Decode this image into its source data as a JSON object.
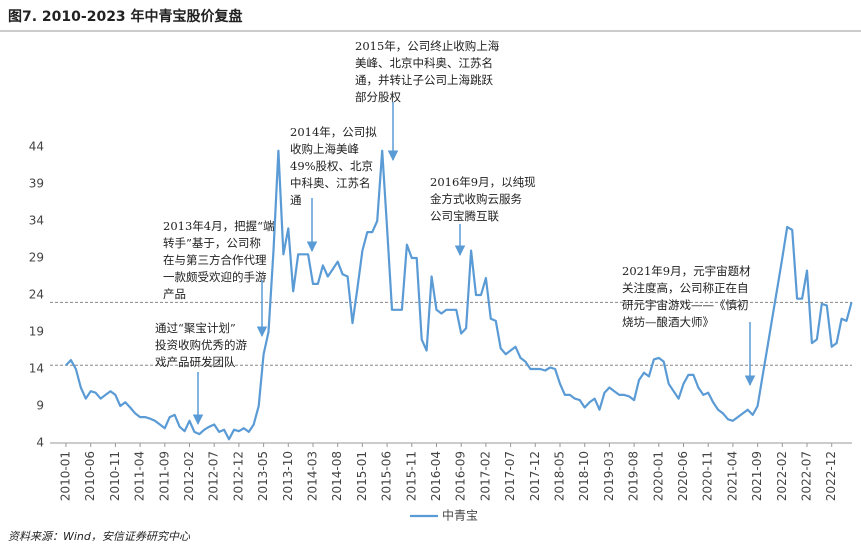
{
  "chart_data": {
    "type": "line",
    "title": "图7. 2010-2023 年中青宝股价复盘",
    "source": "资料来源：Wind，安信证券研究中心",
    "categories": [
      "2010-01",
      null,
      null,
      null,
      null,
      "2010-06",
      null,
      null,
      null,
      null,
      "2010-11",
      null,
      null,
      null,
      null,
      "2011-04",
      null,
      null,
      null,
      null,
      "2011-09",
      null,
      null,
      null,
      null,
      "2012-02",
      null,
      null,
      null,
      null,
      "2012-07",
      null,
      null,
      null,
      null,
      "2012-12",
      null,
      null,
      null,
      null,
      "2013-05",
      null,
      null,
      null,
      null,
      "2013-10",
      null,
      null,
      null,
      null,
      "2014-03",
      null,
      null,
      null,
      null,
      "2014-08",
      null,
      null,
      null,
      null,
      "2015-01",
      null,
      null,
      null,
      null,
      "2015-06",
      null,
      null,
      null,
      null,
      "2015-11",
      null,
      null,
      null,
      null,
      "2016-04",
      null,
      null,
      null,
      null,
      "2016-09",
      null,
      null,
      null,
      null,
      "2017-02",
      null,
      null,
      null,
      null,
      "2017-07",
      null,
      null,
      null,
      null,
      "2017-12",
      null,
      null,
      null,
      null,
      "2018-05",
      null,
      null,
      null,
      null,
      "2018-10",
      null,
      null,
      null,
      null,
      "2019-03",
      null,
      null,
      null,
      null,
      "2019-08",
      null,
      null,
      null,
      null,
      "2020-01",
      null,
      null,
      null,
      null,
      "2020-06",
      null,
      null,
      null,
      null,
      "2020-11",
      null,
      null,
      null,
      null,
      "2021-04",
      null,
      null,
      null,
      null,
      "2021-09",
      null,
      null,
      null,
      null,
      "2022-02",
      null,
      null,
      null,
      null,
      "2022-07",
      null,
      null,
      null,
      null,
      "2022-12",
      null,
      null,
      null,
      null
    ],
    "series": [
      {
        "name": "中青宝",
        "color": "#5b9bd5",
        "values": [
          14.5,
          15.2,
          14,
          11.5,
          10,
          11,
          10.8,
          10,
          10.5,
          11,
          10.5,
          9,
          9.5,
          8.8,
          8,
          7.5,
          7.5,
          7.3,
          7,
          6.5,
          6,
          7.5,
          7.8,
          6.2,
          5.6,
          7,
          5.5,
          5.2,
          5.8,
          6.2,
          6.5,
          5.5,
          5.8,
          4.5,
          5.8,
          5.6,
          6,
          5.5,
          6.5,
          9,
          16,
          19,
          30,
          43.5,
          29.5,
          33,
          24.5,
          29.5,
          29.5,
          29.5,
          25.5,
          25.5,
          28,
          26.5,
          27.5,
          28.5,
          26.8,
          26.5,
          20.2,
          25,
          30,
          32.5,
          32.5,
          34,
          43.5,
          33,
          22,
          22,
          22,
          30.8,
          29,
          29,
          18,
          16.5,
          26.5,
          22,
          21.5,
          22,
          22,
          22,
          18.8,
          19.5,
          30,
          24,
          24,
          26.3,
          20.8,
          20.5,
          16.8,
          16,
          16.5,
          17,
          15.5,
          15,
          14,
          14,
          14,
          13.8,
          14.2,
          14,
          12,
          10.5,
          10.5,
          10,
          9.8,
          8.8,
          9.5,
          10,
          8.5,
          10.8,
          11.5,
          11,
          10.5,
          10.5,
          10.3,
          9.8,
          12.5,
          13.5,
          13,
          15.3,
          15.5,
          15,
          12,
          11,
          10,
          12,
          13.2,
          13.2,
          11.5,
          10.5,
          10.8,
          9.5,
          8.5,
          8,
          7.2,
          7,
          7.5,
          8,
          8.5,
          7.8,
          9,
          13,
          17,
          21,
          25,
          29,
          33.2,
          32.8,
          23.5,
          23.5,
          27.3,
          17.5,
          18,
          22.8,
          22.6,
          17,
          17.5,
          20.8,
          20.5,
          23
        ]
      }
    ],
    "ylim": [
      4,
      44
    ],
    "yticks": [
      4,
      9,
      14,
      19,
      24,
      29,
      34,
      39,
      44
    ],
    "reference_lines": [
      23,
      14.5
    ],
    "legend": "bottom",
    "annotations": [
      {
        "lines": [
          "通过“聚宝计划”",
          "投资收购优秀的游",
          "戏产品研发团队"
        ]
      },
      {
        "lines": [
          "2013年4月，把握“端",
          "转手”基于，公司称",
          "在与第三方合作代理",
          "一款颇受欢迎的手游",
          "产品"
        ]
      },
      {
        "lines": [
          "2014年，公司拟",
          "收购上海美峰",
          "49%股权、北京",
          "中科奥、江苏名",
          "通"
        ]
      },
      {
        "lines": [
          "2015年，公司终止收购上海",
          "美峰、北京中科奥、江苏名",
          "通，并转让子公司上海跳跃",
          "部分股权"
        ]
      },
      {
        "lines": [
          "2016年9月，以纯现",
          "金方式收购云服务",
          "公司宝腾互联"
        ]
      },
      {
        "lines": [
          "2021年9月，元宇宙题材",
          "关注度高，公司称正在自",
          "研元宇宙游戏——《慎初",
          "烧坊—酿酒大师》"
        ]
      }
    ]
  }
}
